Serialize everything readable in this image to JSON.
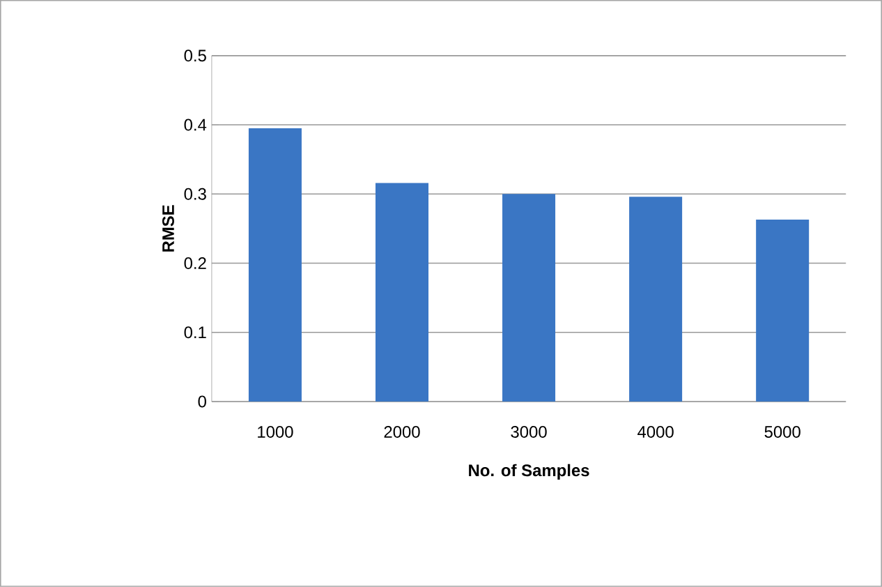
{
  "chart_data": {
    "type": "bar",
    "xlabel": "No. of Samples",
    "ylabel": "RMSE",
    "categories": [
      "1000",
      "2000",
      "3000",
      "4000",
      "5000"
    ],
    "values": [
      0.395,
      0.316,
      0.3,
      0.296,
      0.263
    ],
    "color": "#3a76c4",
    "ylim": [
      0,
      0.5
    ],
    "yticks": [
      0,
      0.1,
      0.2,
      0.3,
      0.4,
      0.5
    ],
    "grid": "y"
  }
}
